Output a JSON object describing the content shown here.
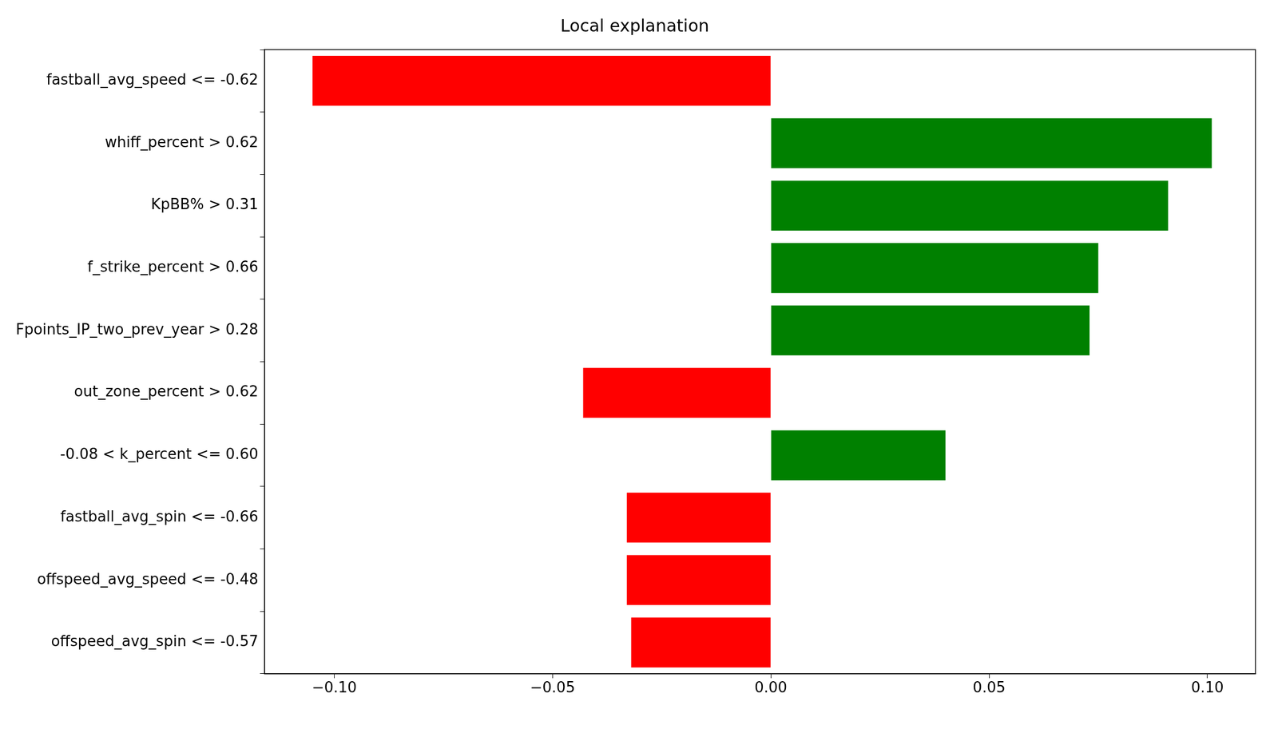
{
  "chart_data": {
    "type": "bar",
    "orientation": "horizontal",
    "title": "Local explanation",
    "categories": [
      "fastball_avg_speed <= -0.62",
      "whiff_percent > 0.62",
      "KpBB% > 0.31",
      "f_strike_percent > 0.66",
      "Fpoints_IP_two_prev_year > 0.28",
      "out_zone_percent > 0.62",
      "-0.08 < k_percent <= 0.60",
      "fastball_avg_spin <= -0.66",
      "offspeed_avg_speed <= -0.48",
      "offspeed_avg_spin <= -0.57"
    ],
    "values": [
      -0.105,
      0.101,
      0.091,
      0.075,
      0.073,
      -0.043,
      0.04,
      -0.033,
      -0.033,
      -0.032
    ],
    "colors": [
      "#ff0000",
      "#008000",
      "#008000",
      "#008000",
      "#008000",
      "#ff0000",
      "#008000",
      "#ff0000",
      "#ff0000",
      "#ff0000"
    ],
    "xlim": [
      -0.116,
      0.111
    ],
    "xticks": [
      {
        "value": -0.1,
        "label": "−0.10"
      },
      {
        "value": -0.05,
        "label": "−0.05"
      },
      {
        "value": 0.0,
        "label": "0.00"
      },
      {
        "value": 0.05,
        "label": "0.05"
      },
      {
        "value": 0.1,
        "label": "0.10"
      }
    ],
    "grid": false
  }
}
